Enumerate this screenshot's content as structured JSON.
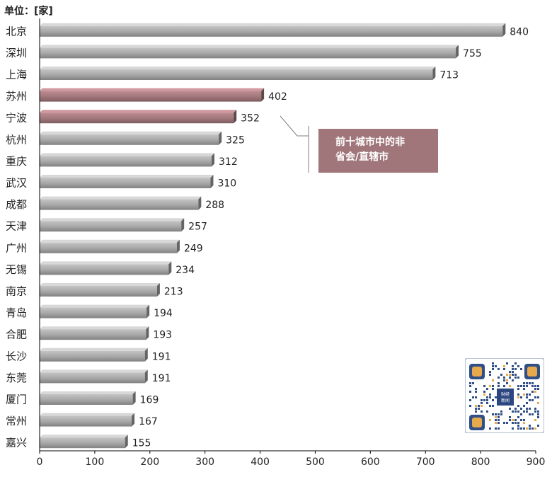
{
  "unit_label": "单位：[家]",
  "annotation": {
    "line1": "前十城市中的非",
    "line2": "省会/直辖市"
  },
  "qr_badge": {
    "line1": "财经",
    "line2": "新闻"
  },
  "colors": {
    "bar_default": "#a6a6a6",
    "bar_highlight": "#a0767a",
    "callout_fill": "#a0767a",
    "axis": "#000000"
  },
  "chart_data": {
    "type": "bar",
    "orientation": "horizontal",
    "title": "",
    "xlabel": "",
    "ylabel": "",
    "categories": [
      "北京",
      "深圳",
      "上海",
      "苏州",
      "宁波",
      "杭州",
      "重庆",
      "武汉",
      "成都",
      "天津",
      "广州",
      "无锡",
      "南京",
      "青岛",
      "合肥",
      "长沙",
      "东莞",
      "厦门",
      "常州",
      "嘉兴"
    ],
    "values": [
      840,
      755,
      713,
      402,
      352,
      325,
      312,
      310,
      288,
      257,
      249,
      234,
      213,
      194,
      193,
      191,
      191,
      169,
      167,
      155
    ],
    "highlighted": [
      "苏州",
      "宁波"
    ],
    "xlim": [
      0,
      900
    ],
    "xticks": [
      0,
      100,
      200,
      300,
      400,
      500,
      600,
      700,
      800,
      900
    ],
    "grid": false,
    "legend": "none"
  }
}
